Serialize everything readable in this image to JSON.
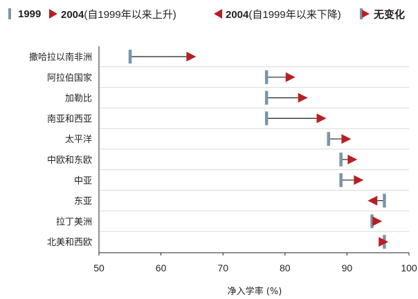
{
  "legend": {
    "items": [
      {
        "label": "1999",
        "note": "",
        "glyph": "bar"
      },
      {
        "label": "2004",
        "note": "(自1999年以来上升)",
        "glyph": "right"
      },
      {
        "label": "2004",
        "note": "(自1999年以来下降)",
        "glyph": "left"
      },
      {
        "label": "无变化",
        "note": "",
        "glyph": "nochange"
      }
    ]
  },
  "colors": {
    "bar_1999": "#7a95a8",
    "arrow_2004": "#b71f23",
    "line": "#231f20",
    "grid": "#d9d9d9"
  },
  "chart_data": {
    "type": "dumbbell",
    "xlabel": "净入学率 (%)",
    "xlim": [
      50,
      100
    ],
    "xticks": [
      50,
      60,
      70,
      80,
      90,
      100
    ],
    "grid": "horizontal",
    "legend_position": "top",
    "series": [
      {
        "name": "1999"
      },
      {
        "name": "2004"
      }
    ],
    "categories": [
      "撒哈拉以南非洲",
      "阿拉伯国家",
      "加勒比",
      "南亚和西亚",
      "太平洋",
      "中欧和东欧",
      "中亚",
      "东亚",
      "拉丁美洲",
      "北美和西欧"
    ],
    "values_1999": [
      55,
      77,
      77,
      77,
      87,
      89,
      89,
      96,
      94,
      96
    ],
    "values_2004": [
      65,
      81,
      83,
      86,
      90,
      91,
      92,
      94,
      95,
      96
    ]
  }
}
